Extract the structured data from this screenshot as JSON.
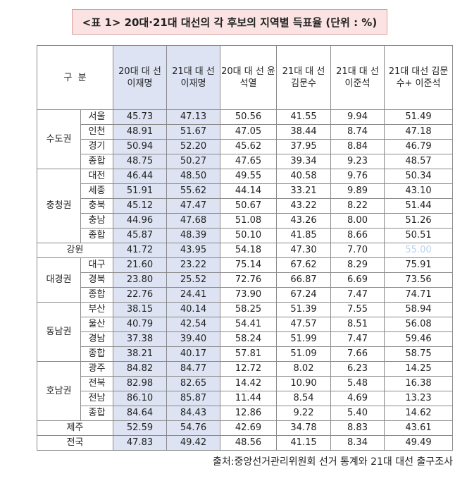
{
  "title": "<표 1> 20대·21대 대선의 각 후보의 지역별 득표율 (단위 : %)",
  "header": {
    "division": "구  분",
    "columns": [
      "20대 대\n선\n이재명",
      "21대 대\n선\n이재명",
      "20대 대\n선\n윤석열",
      "21대 대\n선\n김문수",
      "21대 대\n선\n이준석",
      "21대 대선\n김문수+\n이준석"
    ]
  },
  "groups": [
    {
      "name": "수도권",
      "rows": [
        {
          "sub": "서울",
          "values": [
            "45.73",
            "47.13",
            "50.56",
            "41.55",
            "9.94",
            "51.49"
          ]
        },
        {
          "sub": "인천",
          "values": [
            "48.91",
            "51.67",
            "47.05",
            "38.44",
            "8.74",
            "47.18"
          ]
        },
        {
          "sub": "경기",
          "values": [
            "50.94",
            "52.20",
            "45.62",
            "37.95",
            "8.84",
            "46.79"
          ]
        },
        {
          "sub": "종합",
          "values": [
            "48.75",
            "50.27",
            "47.65",
            "39.34",
            "9.23",
            "48.57"
          ]
        }
      ]
    },
    {
      "name": "충청권",
      "rows": [
        {
          "sub": "대전",
          "values": [
            "46.44",
            "48.50",
            "49.55",
            "40.58",
            "9.76",
            "50.34"
          ]
        },
        {
          "sub": "세종",
          "values": [
            "51.91",
            "55.62",
            "44.14",
            "33.21",
            "9.89",
            "43.10"
          ]
        },
        {
          "sub": "충북",
          "values": [
            "45.12",
            "47.47",
            "50.67",
            "43.22",
            "8.22",
            "51.44"
          ]
        },
        {
          "sub": "충남",
          "values": [
            "44.96",
            "47.68",
            "51.08",
            "43.26",
            "8.00",
            "51.26"
          ]
        },
        {
          "sub": "종합",
          "values": [
            "45.87",
            "48.39",
            "50.10",
            "41.85",
            "8.66",
            "50.51"
          ]
        }
      ]
    },
    {
      "name": "강원",
      "single": true,
      "rows": [
        {
          "sub": "",
          "values": [
            "41.72",
            "43.95",
            "54.18",
            "47.30",
            "7.70",
            "55.00"
          ]
        }
      ]
    },
    {
      "name": "대경권",
      "rows": [
        {
          "sub": "대구",
          "values": [
            "21.60",
            "23.22",
            "75.14",
            "67.62",
            "8.29",
            "75.91"
          ]
        },
        {
          "sub": "경북",
          "values": [
            "23.80",
            "25.52",
            "72.76",
            "66.87",
            "6.69",
            "73.56"
          ]
        },
        {
          "sub": "종합",
          "values": [
            "22.76",
            "24.41",
            "73.90",
            "67.24",
            "7.47",
            "74.71"
          ]
        }
      ]
    },
    {
      "name": "동남권",
      "rows": [
        {
          "sub": "부산",
          "values": [
            "38.15",
            "40.14",
            "58.25",
            "51.39",
            "7.55",
            "58.94"
          ]
        },
        {
          "sub": "울산",
          "values": [
            "40.79",
            "42.54",
            "54.41",
            "47.57",
            "8.51",
            "56.08"
          ]
        },
        {
          "sub": "경남",
          "values": [
            "37.38",
            "39.40",
            "58.24",
            "51.99",
            "7.47",
            "59.46"
          ]
        },
        {
          "sub": "종합",
          "values": [
            "38.21",
            "40.17",
            "57.81",
            "51.09",
            "7.66",
            "58.75"
          ]
        }
      ]
    },
    {
      "name": "호남권",
      "rows": [
        {
          "sub": "광주",
          "values": [
            "84.82",
            "84.77",
            "12.72",
            "8.02",
            "6.23",
            "14.25"
          ]
        },
        {
          "sub": "전북",
          "values": [
            "82.98",
            "82.65",
            "14.42",
            "10.90",
            "5.48",
            "16.38"
          ]
        },
        {
          "sub": "전남",
          "values": [
            "86.10",
            "85.87",
            "11.44",
            "8.54",
            "4.69",
            "13.23"
          ]
        },
        {
          "sub": "종합",
          "values": [
            "84.64",
            "84.43",
            "12.86",
            "9.22",
            "5.40",
            "14.62"
          ]
        }
      ]
    },
    {
      "name": "제주",
      "single": true,
      "rows": [
        {
          "sub": "",
          "values": [
            "52.59",
            "54.76",
            "42.69",
            "34.78",
            "8.83",
            "43.61"
          ]
        }
      ]
    },
    {
      "name": "전국",
      "single": true,
      "rows": [
        {
          "sub": "",
          "values": [
            "47.83",
            "49.42",
            "48.56",
            "41.15",
            "8.34",
            "49.49"
          ]
        }
      ]
    }
  ],
  "source": "출처:중앙선거관리위원회 선거 통계와 21대 대선 출구조사"
}
